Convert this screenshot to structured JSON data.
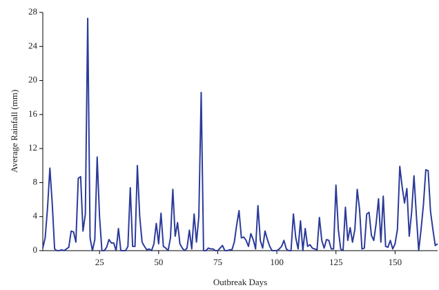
{
  "chart_data": {
    "type": "line",
    "x_label": "Outbreak Days",
    "y_label": "Average Rainfall (mm)",
    "x": [
      1,
      2,
      3,
      4,
      5,
      6,
      7,
      8,
      9,
      10,
      11,
      12,
      13,
      14,
      15,
      16,
      17,
      18,
      19,
      20,
      21,
      22,
      23,
      24,
      25,
      26,
      27,
      28,
      29,
      30,
      31,
      32,
      33,
      34,
      35,
      36,
      37,
      38,
      39,
      40,
      41,
      42,
      43,
      44,
      45,
      46,
      47,
      48,
      49,
      50,
      51,
      52,
      53,
      54,
      55,
      56,
      57,
      58,
      59,
      60,
      61,
      62,
      63,
      64,
      65,
      66,
      67,
      68,
      69,
      70,
      71,
      72,
      73,
      74,
      75,
      76,
      77,
      78,
      79,
      80,
      81,
      82,
      83,
      84,
      85,
      86,
      87,
      88,
      89,
      90,
      91,
      92,
      93,
      94,
      95,
      96,
      97,
      98,
      99,
      100,
      101,
      102,
      103,
      104,
      105,
      106,
      107,
      108,
      109,
      110,
      111,
      112,
      113,
      114,
      115,
      116,
      117,
      118,
      119,
      120,
      121,
      122,
      123,
      124,
      125,
      126,
      127,
      128,
      129,
      130,
      131,
      132,
      133,
      134,
      135,
      136,
      137,
      138,
      139,
      140,
      141,
      142,
      143,
      144,
      145,
      146,
      147,
      148,
      149,
      150,
      151,
      152,
      153,
      154,
      155,
      156,
      157,
      158,
      159,
      160,
      161,
      162,
      163,
      164,
      165,
      166,
      167,
      168
    ],
    "series": [
      {
        "name": "Average Rainfall",
        "color": "#2b3a9a",
        "values": [
          0.3,
          1.5,
          5,
          9.7,
          5.5,
          0.2,
          0,
          0,
          0.1,
          0,
          0.2,
          0.4,
          2.3,
          2.2,
          1,
          8.5,
          8.7,
          2.3,
          4.3,
          27.3,
          1.5,
          0,
          1.3,
          11,
          4,
          0,
          0,
          0.4,
          1.3,
          0.9,
          0.9,
          0,
          2.6,
          0,
          0,
          0,
          0.5,
          7.4,
          0.5,
          0.5,
          10,
          4,
          1,
          0.5,
          0.1,
          0.2,
          0,
          0.8,
          3.2,
          0.8,
          4.4,
          0.5,
          0.3,
          0,
          1.5,
          7.2,
          1.7,
          3.3,
          0.8,
          0.3,
          0,
          0.3,
          2.4,
          0.2,
          4.3,
          1,
          4,
          18.6,
          0,
          0,
          0.3,
          0.2,
          0.2,
          0,
          0,
          0.3,
          0.6,
          0,
          0,
          0.1,
          0.1,
          1,
          3,
          4.7,
          1.5,
          1.6,
          1.2,
          0.5,
          2,
          1.3,
          0.2,
          5.3,
          1.2,
          0.3,
          2.3,
          1.3,
          0.5,
          0,
          0,
          0,
          0.2,
          0.5,
          1.2,
          0.2,
          0,
          0,
          4.3,
          1.5,
          0.2,
          3.5,
          0,
          2.6,
          0.5,
          0.7,
          0.3,
          0.2,
          0.1,
          3.9,
          1.2,
          0.3,
          1.3,
          1.2,
          0.2,
          0.2,
          7.7,
          2.5,
          0.2,
          0,
          5.1,
          1.2,
          2.7,
          1,
          2.5,
          7.2,
          4.8,
          0.2,
          0.3,
          4.3,
          4.5,
          1.8,
          1.2,
          3.2,
          6.1,
          1,
          6.4,
          0.5,
          0.4,
          1.2,
          0.2,
          0.8,
          2.5,
          9.9,
          7.5,
          5.6,
          7.3,
          1.7,
          4.5,
          8.8,
          4.2,
          0,
          2.5,
          5.4,
          9.5,
          9.4,
          4.6,
          2.5,
          0.6,
          0.8
        ]
      }
    ],
    "xlim": [
      1,
      168
    ],
    "xticks": [
      25,
      50,
      75,
      100,
      125,
      150
    ],
    "ylim": [
      0,
      28
    ],
    "yticks": [
      0,
      4,
      8,
      12,
      16,
      20,
      24,
      28
    ]
  }
}
